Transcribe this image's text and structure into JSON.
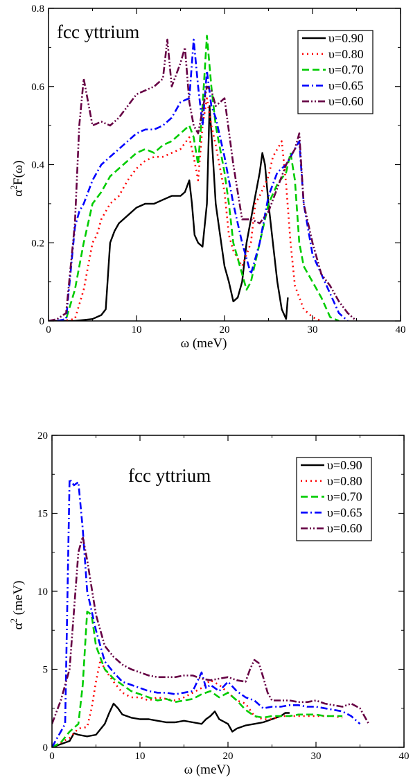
{
  "chart_data": [
    {
      "type": "line",
      "title": "fcc yttrium",
      "xlabel": "ω  (meV)",
      "ylabel_main": "α",
      "ylabel_sup": "2",
      "ylabel_rest": "F(ω)",
      "xlim": [
        0,
        40
      ],
      "ylim": [
        0,
        0.8
      ],
      "xticks": [
        0,
        10,
        20,
        30,
        40
      ],
      "yticks": [
        0,
        0.2,
        0.4,
        0.6,
        0.8
      ],
      "xtick_labels": [
        "0",
        "10",
        "20",
        "30",
        "40"
      ],
      "ytick_labels": [
        "0",
        "0.2",
        "0.4",
        "0.6",
        "0.8"
      ],
      "grid": false,
      "legend_position": "top-right",
      "series": [
        {
          "name": "υ=0.90",
          "color": "#000000",
          "dash": "solid",
          "x": [
            0,
            3,
            5,
            6,
            6.5,
            7,
            7.5,
            8,
            9,
            10,
            11,
            12,
            13,
            14,
            15,
            15.5,
            16,
            16.3,
            16.6,
            17,
            17.5,
            18,
            18.3,
            18.6,
            19,
            19.5,
            20,
            20.5,
            21,
            21.5,
            22,
            22.5,
            23,
            23.5,
            24,
            24.3,
            24.6,
            25,
            25.5,
            26,
            26.5,
            27,
            27.2
          ],
          "y": [
            0,
            0,
            0.005,
            0.015,
            0.03,
            0.2,
            0.23,
            0.25,
            0.27,
            0.29,
            0.3,
            0.3,
            0.31,
            0.32,
            0.32,
            0.33,
            0.36,
            0.3,
            0.22,
            0.2,
            0.19,
            0.3,
            0.55,
            0.45,
            0.3,
            0.22,
            0.14,
            0.1,
            0.05,
            0.06,
            0.1,
            0.2,
            0.26,
            0.32,
            0.38,
            0.43,
            0.4,
            0.3,
            0.2,
            0.1,
            0.03,
            0.005,
            0.06
          ]
        },
        {
          "name": "υ=0.80",
          "color": "#ff0000",
          "dash": "dot",
          "x": [
            1.5,
            3,
            4,
            5,
            5.5,
            6,
            7,
            8,
            9,
            10,
            11,
            12,
            13,
            14,
            15,
            16,
            16.5,
            17,
            17.5,
            18,
            18.5,
            19,
            20,
            20.5,
            21,
            22,
            23,
            23.5,
            24,
            25,
            25.5,
            26,
            26.5,
            27,
            27.5,
            28,
            29,
            30,
            31
          ],
          "y": [
            0,
            0.005,
            0.08,
            0.2,
            0.22,
            0.26,
            0.3,
            0.32,
            0.36,
            0.39,
            0.41,
            0.42,
            0.42,
            0.43,
            0.44,
            0.47,
            0.42,
            0.36,
            0.5,
            0.57,
            0.5,
            0.45,
            0.33,
            0.22,
            0.18,
            0.14,
            0.2,
            0.3,
            0.32,
            0.37,
            0.42,
            0.44,
            0.46,
            0.35,
            0.2,
            0.09,
            0.03,
            0.01,
            0
          ]
        },
        {
          "name": "υ=0.70",
          "color": "#00cc00",
          "dash": "dash",
          "x": [
            1,
            2,
            3,
            4,
            4.5,
            5,
            6,
            7,
            8,
            9,
            10,
            11,
            12,
            13,
            14,
            15,
            16,
            16.5,
            17,
            17.5,
            18,
            18.5,
            19,
            20,
            20.5,
            21,
            22,
            22.5,
            23,
            24,
            25,
            26,
            27,
            27.5,
            28,
            28.5,
            29,
            30,
            31,
            32,
            33
          ],
          "y": [
            0,
            0.005,
            0.08,
            0.2,
            0.25,
            0.3,
            0.33,
            0.37,
            0.39,
            0.41,
            0.43,
            0.44,
            0.43,
            0.45,
            0.46,
            0.48,
            0.5,
            0.47,
            0.4,
            0.55,
            0.73,
            0.6,
            0.5,
            0.38,
            0.3,
            0.2,
            0.12,
            0.08,
            0.1,
            0.2,
            0.3,
            0.35,
            0.38,
            0.43,
            0.36,
            0.2,
            0.14,
            0.1,
            0.06,
            0.01,
            0
          ]
        },
        {
          "name": "υ=0.65",
          "color": "#0000ff",
          "dash": "dashdot",
          "x": [
            1,
            2,
            3,
            3.5,
            4,
            5,
            6,
            7,
            8,
            9,
            10,
            11,
            12,
            13,
            14,
            15,
            16,
            16.5,
            17,
            17.5,
            18,
            18.5,
            19,
            20,
            21,
            22,
            23,
            24,
            25,
            26,
            27,
            28,
            28.5,
            29,
            30,
            31,
            32,
            33,
            34
          ],
          "y": [
            0,
            0.005,
            0.24,
            0.28,
            0.3,
            0.36,
            0.4,
            0.42,
            0.44,
            0.46,
            0.48,
            0.49,
            0.49,
            0.5,
            0.52,
            0.56,
            0.57,
            0.72,
            0.6,
            0.5,
            0.64,
            0.55,
            0.52,
            0.42,
            0.3,
            0.2,
            0.12,
            0.2,
            0.32,
            0.38,
            0.4,
            0.44,
            0.46,
            0.3,
            0.17,
            0.12,
            0.07,
            0.02,
            0
          ]
        },
        {
          "name": "υ=0.60",
          "color": "#660044",
          "dash": "dashdotdot",
          "x": [
            0,
            1,
            2,
            3,
            3.5,
            4,
            5,
            6,
            7,
            8,
            9,
            10,
            11,
            12,
            13,
            13.5,
            14,
            15,
            15.5,
            16,
            16.5,
            17,
            18,
            18.5,
            19,
            20,
            21,
            22,
            23,
            24,
            25,
            26,
            27,
            28,
            28.5,
            29,
            30,
            31,
            32,
            33,
            34,
            35
          ],
          "y": [
            0,
            0.005,
            0.02,
            0.25,
            0.5,
            0.62,
            0.5,
            0.51,
            0.5,
            0.52,
            0.55,
            0.58,
            0.59,
            0.6,
            0.62,
            0.72,
            0.6,
            0.66,
            0.7,
            0.56,
            0.5,
            0.48,
            0.6,
            0.59,
            0.55,
            0.57,
            0.4,
            0.26,
            0.26,
            0.25,
            0.28,
            0.34,
            0.4,
            0.44,
            0.48,
            0.3,
            0.2,
            0.12,
            0.09,
            0.05,
            0.02,
            0
          ]
        }
      ]
    },
    {
      "type": "line",
      "title": "fcc yttrium",
      "xlabel": "ω  (meV)",
      "ylabel_main": "α",
      "ylabel_sup": "2",
      "ylabel_rest": "  (meV)",
      "xlim": [
        0,
        40
      ],
      "ylim": [
        0,
        20
      ],
      "xticks": [
        0,
        10,
        20,
        30,
        40
      ],
      "yticks": [
        0,
        5,
        10,
        15,
        20
      ],
      "xtick_labels": [
        "0",
        "10",
        "20",
        "30",
        "40"
      ],
      "ytick_labels": [
        "0",
        "5",
        "10",
        "15",
        "20"
      ],
      "grid": false,
      "legend_position": "top-right",
      "series": [
        {
          "name": "υ=0.90",
          "color": "#000000",
          "dash": "solid",
          "x": [
            0,
            1,
            2,
            2.5,
            3,
            4,
            5,
            6,
            6.5,
            7,
            7.5,
            8,
            9,
            10,
            11,
            12,
            13,
            14,
            15,
            16,
            17,
            17.5,
            18,
            18.5,
            19,
            20,
            20.5,
            21,
            22,
            23,
            24,
            25,
            26,
            26.5,
            27
          ],
          "y": [
            0,
            0.2,
            0.4,
            0.9,
            0.8,
            0.7,
            0.8,
            1.5,
            2.2,
            2.8,
            2.5,
            2.1,
            1.9,
            1.8,
            1.8,
            1.7,
            1.6,
            1.6,
            1.7,
            1.6,
            1.5,
            1.8,
            2.0,
            2.3,
            1.8,
            1.5,
            1.0,
            1.2,
            1.4,
            1.5,
            1.6,
            1.8,
            2.0,
            2.2,
            2.2
          ]
        },
        {
          "name": "υ=0.80",
          "color": "#ff0000",
          "dash": "dot",
          "x": [
            0,
            1,
            2,
            3,
            4,
            4.5,
            5,
            5.5,
            6,
            7,
            8,
            9,
            10,
            11,
            12,
            13,
            14,
            15,
            16,
            17,
            18,
            19,
            20,
            21,
            22,
            23,
            24,
            25,
            26,
            27,
            28,
            29,
            30,
            31,
            32,
            33
          ],
          "y": [
            0,
            0.3,
            0.6,
            1.2,
            1.3,
            2.5,
            4.2,
            5.6,
            5.0,
            4.2,
            3.5,
            3.2,
            3.2,
            3.0,
            3.2,
            3.1,
            3.0,
            3.2,
            3.5,
            3.8,
            4.3,
            4.0,
            3.5,
            3.0,
            2.8,
            2.0,
            1.8,
            1.8,
            2.0,
            2.0,
            2.0,
            2.0,
            2.0,
            2.0,
            2.0,
            1.9
          ]
        },
        {
          "name": "υ=0.70",
          "color": "#00cc00",
          "dash": "dash",
          "x": [
            0,
            1,
            2,
            3,
            3.5,
            4,
            4.5,
            5,
            6,
            7,
            8,
            9,
            10,
            11,
            12,
            13,
            14,
            15,
            16,
            17,
            18,
            19,
            20,
            21,
            22,
            23,
            24,
            25,
            26,
            27,
            28,
            29,
            30,
            31,
            32,
            33
          ],
          "y": [
            0,
            0.3,
            1.0,
            1.5,
            4.0,
            8.7,
            8.5,
            6.5,
            5.0,
            4.4,
            4.0,
            3.6,
            3.4,
            3.2,
            3.0,
            3.1,
            2.9,
            3.0,
            3.1,
            3.4,
            3.6,
            3.2,
            3.5,
            3.0,
            2.4,
            2.0,
            1.9,
            2.0,
            2.0,
            2.0,
            2.1,
            2.1,
            2.1,
            2.0,
            2.0,
            2.0
          ]
        },
        {
          "name": "υ=0.65",
          "color": "#0000ff",
          "dash": "dashdot",
          "x": [
            0,
            1,
            1.5,
            2,
            2.5,
            3,
            3.5,
            4,
            5,
            6,
            7,
            8,
            9,
            10,
            11,
            12,
            13,
            14,
            15,
            16,
            17,
            17.5,
            18,
            19,
            20,
            21,
            22,
            23,
            24,
            25,
            26,
            27,
            28,
            29,
            30,
            31,
            32,
            33,
            34,
            35
          ],
          "y": [
            0,
            1.0,
            1.5,
            17.2,
            16.8,
            17.0,
            14.0,
            10.0,
            7.5,
            5.5,
            4.8,
            4.2,
            4.0,
            3.8,
            3.6,
            3.5,
            3.5,
            3.4,
            3.5,
            3.6,
            4.8,
            3.8,
            4.0,
            3.6,
            4.2,
            3.6,
            3.2,
            3.0,
            2.5,
            2.6,
            2.6,
            2.7,
            2.7,
            2.6,
            2.6,
            2.5,
            2.4,
            2.3,
            2.0,
            1.5
          ]
        },
        {
          "name": "υ=0.60",
          "color": "#660044",
          "dash": "dashdotdot",
          "x": [
            0,
            1,
            2,
            3,
            3.5,
            4,
            5,
            6,
            7,
            8,
            9,
            10,
            11,
            12,
            13,
            14,
            15,
            16,
            17,
            18,
            19,
            20,
            21,
            22,
            22.5,
            23,
            23.5,
            24,
            24.5,
            25,
            26,
            27,
            28,
            29,
            30,
            31,
            32,
            33,
            34,
            35,
            36
          ],
          "y": [
            1.5,
            3.0,
            5.0,
            12.5,
            13.5,
            12.0,
            8.5,
            6.5,
            5.8,
            5.3,
            5.0,
            4.8,
            4.6,
            4.5,
            4.5,
            4.5,
            4.6,
            4.6,
            4.4,
            4.3,
            4.4,
            4.5,
            4.3,
            4.2,
            5.0,
            5.6,
            5.4,
            4.5,
            3.5,
            3.0,
            3.0,
            3.0,
            2.9,
            2.9,
            3.0,
            2.8,
            2.7,
            2.6,
            2.8,
            2.5,
            1.5
          ]
        }
      ]
    }
  ]
}
